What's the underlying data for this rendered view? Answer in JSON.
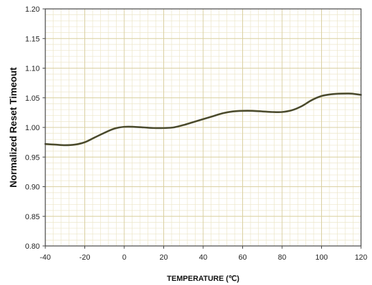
{
  "chart_data": {
    "type": "line",
    "title": "",
    "xlabel": "TEMPERATURE (℃)",
    "ylabel": "Normalized Reset Timeout",
    "xlim": [
      -40,
      120
    ],
    "ylim": [
      0.8,
      1.2
    ],
    "x_ticks": [
      "-40",
      "-20",
      "0",
      "20",
      "40",
      "60",
      "80",
      "100",
      "120"
    ],
    "y_ticks": [
      "1.20",
      "1.15",
      "1.10",
      "1.05",
      "1.00",
      "0.95",
      "0.90",
      "0.85",
      "0.80"
    ],
    "grid": true,
    "minor_grid": true,
    "series": [
      {
        "color": "#4a4a2c",
        "x": [
          -40,
          -35,
          -30,
          -25,
          -20,
          -15,
          -10,
          -5,
          0,
          5,
          10,
          15,
          20,
          25,
          30,
          35,
          40,
          45,
          50,
          55,
          60,
          65,
          70,
          75,
          80,
          85,
          90,
          95,
          100,
          105,
          110,
          115,
          120
        ],
        "y": [
          0.972,
          0.971,
          0.97,
          0.971,
          0.975,
          0.983,
          0.991,
          0.998,
          1.001,
          1.001,
          1.0,
          0.999,
          0.999,
          1.0,
          1.004,
          1.009,
          1.014,
          1.019,
          1.024,
          1.027,
          1.028,
          1.028,
          1.027,
          1.026,
          1.026,
          1.029,
          1.036,
          1.046,
          1.053,
          1.056,
          1.057,
          1.057,
          1.055
        ]
      }
    ]
  },
  "colors": {
    "plot_border": "#444444",
    "major_grid": "#d9cfa0",
    "minor_grid": "#ece6c8",
    "line": "#4a4a2c"
  }
}
